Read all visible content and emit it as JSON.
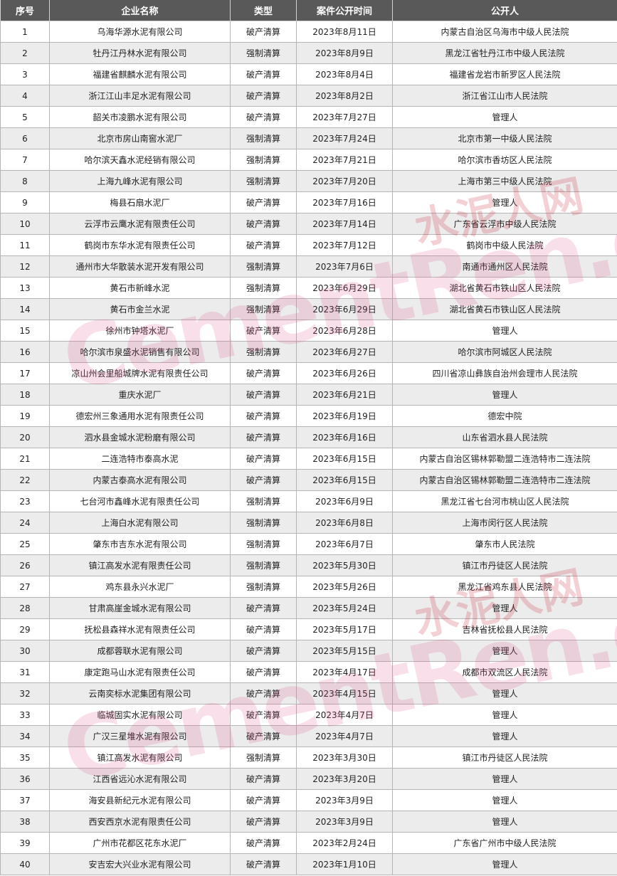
{
  "table": {
    "headers": [
      "序号",
      "企业名称",
      "类型",
      "案件公开时间",
      "公开人"
    ],
    "rows": [
      [
        "1",
        "乌海华源水泥有限公司",
        "破产清算",
        "2023年8月11日",
        "内蒙古自治区乌海市中级人民法院"
      ],
      [
        "2",
        "牡丹江丹林水泥有限公司",
        "强制清算",
        "2023年8月9日",
        "黑龙江省牡丹江市中级人民法院"
      ],
      [
        "3",
        "福建省麒麟水泥有限公司",
        "破产清算",
        "2023年8月4日",
        "福建省龙岩市新罗区人民法院"
      ],
      [
        "4",
        "浙江江山丰足水泥有限公司",
        "破产清算",
        "2023年8月2日",
        "浙江省江山市人民法院"
      ],
      [
        "5",
        "韶关市凌鹏水泥有限公司",
        "破产清算",
        "2023年7月27日",
        "管理人"
      ],
      [
        "6",
        "北京市房山南窖水泥厂",
        "强制清算",
        "2023年7月24日",
        "北京市第一中级人民法院"
      ],
      [
        "7",
        "哈尔滨天鑫水泥经销有限公司",
        "强制清算",
        "2023年7月21日",
        "哈尔滨市香坊区人民法院"
      ],
      [
        "8",
        "上海九峰水泥有限公司",
        "强制清算",
        "2023年7月20日",
        "上海市第三中级人民法院"
      ],
      [
        "9",
        "梅县石扇水泥厂",
        "破产清算",
        "2023年7月16日",
        "管理人"
      ],
      [
        "10",
        "云浮市云鹰水泥有限责任公司",
        "破产清算",
        "2023年7月14日",
        "广东省云浮市中级人民法院"
      ],
      [
        "11",
        "鹤岗市东华水泥有限责任公司",
        "破产清算",
        "2023年7月12日",
        "鹤岗市中级人民法院"
      ],
      [
        "12",
        "通州市大华散装水泥开发有限公司",
        "强制清算",
        "2023年7月6日",
        "南通市通州区人民法院"
      ],
      [
        "13",
        "黄石市新峰水泥",
        "强制清算",
        "2023年6月29日",
        "湖北省黄石市铁山区人民法院"
      ],
      [
        "14",
        "黄石市金兰水泥",
        "强制清算",
        "2023年6月29日",
        "湖北省黄石市铁山区人民法院"
      ],
      [
        "15",
        "徐州市钟塔水泥厂",
        "破产清算",
        "2023年6月28日",
        "管理人"
      ],
      [
        "16",
        "哈尔滨市泉盛水泥销售有限公司",
        "强制清算",
        "2023年6月27日",
        "哈尔滨市阿城区人民法院"
      ],
      [
        "17",
        "凉山州会里船城牌水泥有限责任公司",
        "破产清算",
        "2023年6月26日",
        "四川省凉山彝族自治州会理市人民法院"
      ],
      [
        "18",
        "重庆水泥厂",
        "破产清算",
        "2023年6月21日",
        "管理人"
      ],
      [
        "19",
        "德宏州三象通用水泥有限责任公司",
        "破产清算",
        "2023年6月19日",
        "德宏中院"
      ],
      [
        "20",
        "泗水县金城水泥粉磨有限公司",
        "破产清算",
        "2023年6月16日",
        "山东省泗水县人民法院"
      ],
      [
        "21",
        "二连浩特市泰高水泥",
        "破产清算",
        "2023年6月15日",
        "内蒙古自治区锡林郭勒盟二连浩特市二连法院"
      ],
      [
        "22",
        "内蒙古泰高水泥有限公司",
        "破产清算",
        "2023年6月15日",
        "内蒙古自治区锡林郭勒盟二连浩特市二连法院"
      ],
      [
        "23",
        "七台河市鑫峰水泥有限责任公司",
        "强制清算",
        "2023年6月9日",
        "黑龙江省七台河市桃山区人民法院"
      ],
      [
        "24",
        "上海白水泥有限公司",
        "强制清算",
        "2023年6月8日",
        "上海市闵行区人民法院"
      ],
      [
        "25",
        "肇东市吉东水泥有限公司",
        "强制清算",
        "2023年6月7日",
        "肇东市人民法院"
      ],
      [
        "26",
        "镇江高发水泥有限责任公司",
        "强制清算",
        "2023年5月30日",
        "镇江市丹徒区人民法院"
      ],
      [
        "27",
        "鸡东县永兴水泥厂",
        "强制清算",
        "2023年5月26日",
        "黑龙江省鸡东县人民法院"
      ],
      [
        "28",
        "甘肃高崖金城水泥有限公司",
        "破产清算",
        "2023年5月24日",
        "管理人"
      ],
      [
        "29",
        "抚松县森祥水泥有限责任公司",
        "破产清算",
        "2023年5月17日",
        "吉林省抚松县人民法院"
      ],
      [
        "30",
        "成都蓉联水泥有限公司",
        "破产清算",
        "2023年5月15日",
        "管理人"
      ],
      [
        "31",
        "康定跑马山水泥有限责任公司",
        "破产清算",
        "2023年4月17日",
        "成都市双流区人民法院"
      ],
      [
        "32",
        "云南奕标水泥集团有限公司",
        "破产清算",
        "2023年4月15日",
        "管理人"
      ],
      [
        "33",
        "临城固实水泥有限公司",
        "破产清算",
        "2023年4月7日",
        "管理人"
      ],
      [
        "34",
        "广汉三星堆水泥有限公司",
        "破产清算",
        "2023年4月7日",
        "管理人"
      ],
      [
        "35",
        "镇江高发水泥有限公司",
        "强制清算",
        "2023年3月30日",
        "镇江市丹徒区人民法院"
      ],
      [
        "36",
        "江西省远沁水泥有限公司",
        "破产清算",
        "2023年3月20日",
        "管理人"
      ],
      [
        "37",
        "海安县新纪元水泥有限公司",
        "破产清算",
        "2023年3月9日",
        "管理人"
      ],
      [
        "38",
        "西安西京水泥有限责任公司",
        "破产清算",
        "2023年3月9日",
        "管理人"
      ],
      [
        "39",
        "广州市花都区花东水泥厂",
        "破产清算",
        "2023年2月24日",
        "广东省广州市中级人民法院"
      ],
      [
        "40",
        "安吉宏大兴业水泥有限公司",
        "破产清算",
        "2023年1月10日",
        "管理人"
      ]
    ]
  },
  "watermark": {
    "en": "CementRen.com",
    "cn": "水泥人网"
  },
  "colors": {
    "header_bg": "#595959",
    "header_text": "#ffffff",
    "stripe": "#ececec"
  }
}
